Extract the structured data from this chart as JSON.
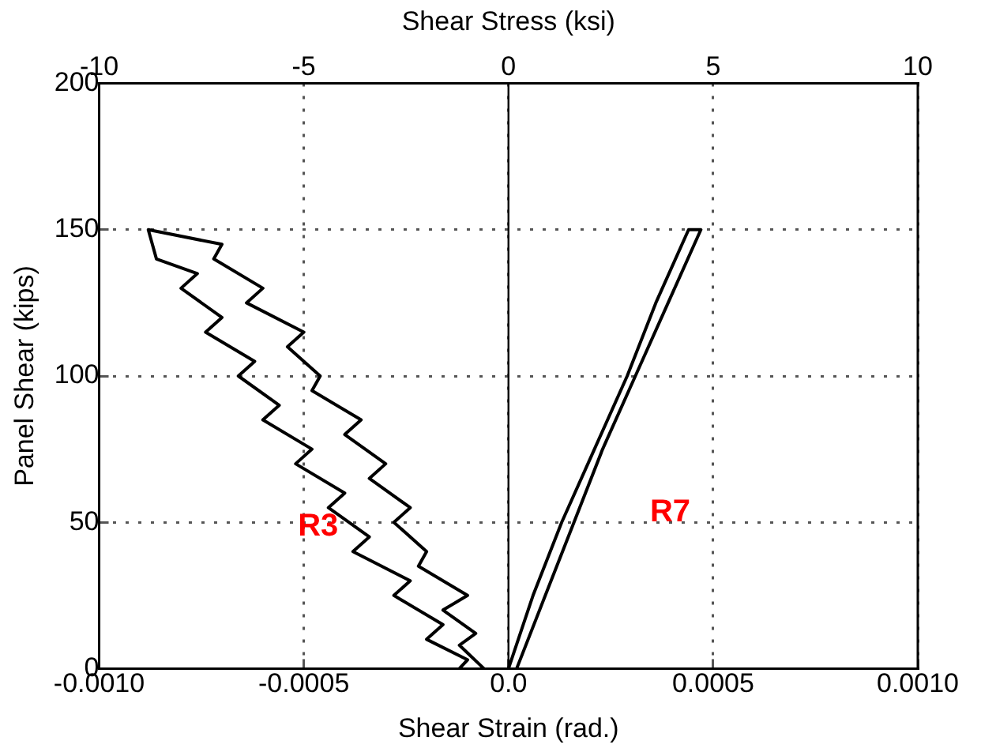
{
  "chart_data": {
    "type": "line",
    "xlabel": "Shear Strain (rad.)",
    "ylabel": "Panel Shear (kips)",
    "x2label": "Shear Stress (ksi)",
    "xlim": [
      -0.001,
      0.001
    ],
    "xticks": [
      {
        "value": -0.001,
        "label": "-0.0010"
      },
      {
        "value": -0.0005,
        "label": "-0.0005"
      },
      {
        "value": 0,
        "label": "0.0"
      },
      {
        "value": 0.0005,
        "label": "0.0005"
      },
      {
        "value": 0.001,
        "label": "0.0010"
      }
    ],
    "x2lim": [
      -10,
      10
    ],
    "x2ticks": [
      -10,
      -5,
      0,
      5,
      10
    ],
    "ylim": [
      0,
      200
    ],
    "yticks": [
      0,
      50,
      100,
      150,
      200
    ],
    "grid": true,
    "legend": false,
    "marker": "none",
    "line_style": "solid",
    "series": [
      {
        "name": "R3",
        "color": "#000000",
        "x": [
          -6e-05,
          -0.00012,
          -8e-05,
          -0.00016,
          -0.0001,
          -0.00022,
          -0.0002,
          -0.00028,
          -0.00024,
          -0.00034,
          -0.0003,
          -0.0004,
          -0.00036,
          -0.00048,
          -0.00046,
          -0.00054,
          -0.0005,
          -0.00064,
          -0.0006,
          -0.00072,
          -0.0007,
          -0.00088,
          -0.00086,
          -0.00076,
          -0.0008,
          -0.0007,
          -0.00074,
          -0.00062,
          -0.00066,
          -0.00056,
          -0.0006,
          -0.00048,
          -0.00052,
          -0.0004,
          -0.00044,
          -0.00034,
          -0.00038,
          -0.00024,
          -0.00028,
          -0.00016,
          -0.0002,
          -0.0001,
          -0.00012
        ],
        "values": [
          0,
          8,
          12,
          20,
          25,
          35,
          40,
          50,
          55,
          65,
          70,
          80,
          85,
          95,
          100,
          110,
          115,
          125,
          130,
          140,
          145,
          150,
          140,
          135,
          130,
          120,
          115,
          105,
          100,
          90,
          85,
          75,
          70,
          60,
          55,
          45,
          40,
          30,
          25,
          15,
          10,
          3,
          0
        ]
      },
      {
        "name": "R7",
        "color": "#000000",
        "x": [
          2e-05,
          9e-05,
          0.00016,
          0.00023,
          0.00031,
          0.00039,
          0.00047,
          0.00044,
          0.00036,
          0.00029,
          0.00021,
          0.00013,
          6e-05,
          0.0
        ],
        "values": [
          0,
          25,
          50,
          75,
          100,
          125,
          150,
          150,
          125,
          100,
          75,
          50,
          25,
          0
        ]
      }
    ],
    "ref_lines": [
      {
        "axis": "x",
        "value": 0,
        "color": "#000000",
        "line_style": "solid"
      }
    ]
  }
}
